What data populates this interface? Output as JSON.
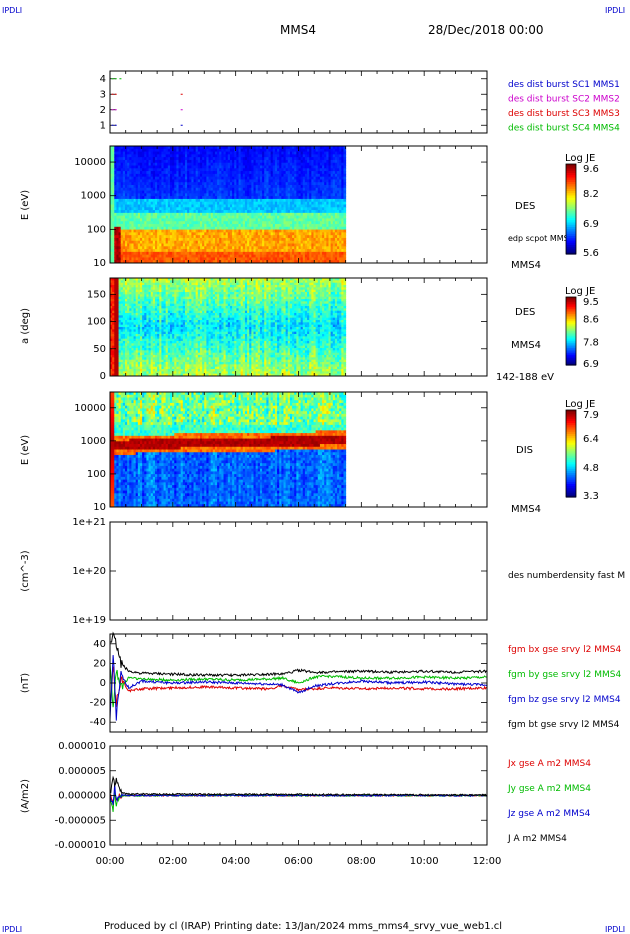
{
  "corner_labels": [
    "IPDLI",
    "IPDLI",
    "IPDLI",
    "IPDLI"
  ],
  "header": {
    "spacecraft": "MMS4",
    "date": "28/Dec/2018 00:00"
  },
  "footer": "Produced by cl (IRAP)   Printing date: 13/Jan/2024   mms_mms4_srvy_vue_web1.cl",
  "colors": {
    "mms1": "#0000cc",
    "mms2": "#cc00cc",
    "mms3": "#dd0000",
    "mms4": "#00bb00",
    "black": "#000000"
  },
  "time_axis": {
    "ticks": [
      "00:00",
      "02:00",
      "04:00",
      "06:00",
      "08:00",
      "10:00",
      "12:00"
    ],
    "range_hours": [
      0,
      12
    ]
  },
  "chart_data": [
    {
      "type": "scatter",
      "panel": "burst",
      "ylim": [
        0.5,
        4.5
      ],
      "yticks": [
        "1",
        "2",
        "3",
        "4"
      ],
      "legend": [
        "des dist burst SC1 MMS1",
        "des dist burst SC2 MMS2",
        "des dist burst SC3 MMS3",
        "des dist burst SC4 MMS4"
      ],
      "series": [
        {
          "name": "des dist burst SC1 MMS1",
          "y": 1,
          "x_hours": [
            0.05,
            0.15,
            2.25
          ]
        },
        {
          "name": "des dist burst SC2 MMS2",
          "y": 2,
          "x_hours": [
            0.05,
            0.15,
            2.25
          ]
        },
        {
          "name": "des dist burst SC3 MMS3",
          "y": 3,
          "x_hours": [
            0.05,
            0.15,
            2.25
          ]
        },
        {
          "name": "des dist burst SC4 MMS4",
          "y": 4,
          "x_hours": [
            0.05,
            0.15,
            0.3
          ]
        }
      ]
    },
    {
      "type": "heatmap",
      "panel": "des_energy",
      "ylabel": "E (eV)",
      "yscale": "log",
      "ylim": [
        10,
        30000
      ],
      "yticks": [
        "10000",
        "1000",
        "100",
        "10"
      ],
      "data_end_hour": 7.5,
      "side_labels": [
        "DES",
        "edp scpot MMS4",
        "MMS4"
      ],
      "colorbar": {
        "title": "Log JE",
        "ticks": [
          "9.6",
          "8.2",
          "6.9",
          "5.6"
        ],
        "range": [
          5.6,
          9.6
        ]
      }
    },
    {
      "type": "heatmap",
      "panel": "des_pitch",
      "ylabel": "a (deg)",
      "ylim": [
        0,
        180
      ],
      "yticks": [
        "150",
        "100",
        "50",
        "0"
      ],
      "data_end_hour": 7.5,
      "side_labels": [
        "DES",
        "MMS4",
        "142-188 eV"
      ],
      "colorbar": {
        "title": "Log JE",
        "ticks": [
          "9.5",
          "8.6",
          "7.8",
          "6.9"
        ],
        "range": [
          6.9,
          9.5
        ]
      }
    },
    {
      "type": "heatmap",
      "panel": "dis_energy",
      "ylabel": "E (eV)",
      "yscale": "log",
      "ylim": [
        10,
        30000
      ],
      "yticks": [
        "10000",
        "1000",
        "100",
        "10"
      ],
      "data_end_hour": 7.5,
      "side_labels": [
        "DIS",
        "MMS4"
      ],
      "colorbar": {
        "title": "Log JE",
        "ticks": [
          "7.9",
          "6.4",
          "4.8",
          "3.3"
        ],
        "range": [
          3.3,
          7.9
        ]
      }
    },
    {
      "type": "line",
      "panel": "density",
      "ylabel": "(cm^-3)",
      "yscale": "log",
      "ylim": [
        1e+19,
        1e+21
      ],
      "yticks": [
        "1e+21",
        "1e+20",
        "1e+19"
      ],
      "legend": [
        "des numberdensity fast M"
      ],
      "series": []
    },
    {
      "type": "line",
      "panel": "fgm",
      "ylabel": "(nT)",
      "ylim": [
        -50,
        50
      ],
      "yticks": [
        "40",
        "20",
        "0",
        "-20",
        "-40"
      ],
      "legend": [
        "fgm bx gse srvy l2 MMS4",
        "fgm by gse srvy l2 MMS4",
        "fgm bz gse srvy l2 MMS4",
        "fgm bt gse srvy l2 MMS4"
      ],
      "series": [
        {
          "name": "fgm bx gse srvy l2 MMS4",
          "x_hours": [
            0,
            0.1,
            0.2,
            0.35,
            0.6,
            1,
            2,
            3,
            4,
            5,
            5.5,
            6,
            6.5,
            7,
            8,
            9,
            10,
            11,
            12
          ],
          "values": [
            -30,
            15,
            -20,
            5,
            -8,
            -6,
            -5,
            -4,
            -5,
            -6,
            -3,
            -7,
            -6,
            -5,
            -6,
            -5,
            -6,
            -6,
            -5
          ]
        },
        {
          "name": "fgm by gse srvy l2 MMS4",
          "x_hours": [
            0,
            0.1,
            0.2,
            0.35,
            0.6,
            1,
            2,
            3,
            4,
            5,
            5.5,
            6,
            6.5,
            7,
            8,
            9,
            10,
            11,
            12
          ],
          "values": [
            20,
            -25,
            15,
            -5,
            6,
            4,
            3,
            4,
            3,
            4,
            5,
            0,
            6,
            7,
            5,
            5,
            6,
            5,
            6
          ]
        },
        {
          "name": "fgm bz gse srvy l2 MMS4",
          "x_hours": [
            0,
            0.1,
            0.2,
            0.35,
            0.6,
            1,
            2,
            3,
            4,
            5,
            5.5,
            6,
            6.5,
            7,
            8,
            9,
            10,
            11,
            12
          ],
          "values": [
            -40,
            30,
            -35,
            8,
            -5,
            2,
            0,
            1,
            0,
            -1,
            -2,
            -10,
            -3,
            -1,
            2,
            0,
            1,
            -1,
            -2
          ]
        },
        {
          "name": "fgm bt gse srvy l2 MMS4",
          "x_hours": [
            0,
            0.1,
            0.2,
            0.35,
            0.6,
            1,
            2,
            3,
            4,
            5,
            5.5,
            6,
            6.5,
            7,
            8,
            9,
            10,
            11,
            12
          ],
          "values": [
            45,
            48,
            40,
            20,
            12,
            10,
            9,
            8,
            8,
            9,
            9,
            13,
            11,
            11,
            12,
            11,
            12,
            11,
            12
          ]
        }
      ]
    },
    {
      "type": "line",
      "panel": "current",
      "ylabel": "(A/m2)",
      "ylim": [
        -1e-05,
        1e-05
      ],
      "yticks": [
        "0.000010",
        "0.000005",
        "0.000000",
        "-0.000005",
        "-0.000010"
      ],
      "legend": [
        "Jx gse A m2 MMS4",
        "Jy gse A m2 MMS4",
        "Jz gse A m2 MMS4",
        "J A m2 MMS4"
      ],
      "series": [
        {
          "name": "Jx gse A m2 MMS4",
          "x_hours": [
            0,
            0.1,
            0.15,
            0.2,
            0.3,
            0.5,
            12
          ],
          "values": [
            0,
            -2e-06,
            1e-06,
            -1e-06,
            0,
            0,
            0
          ]
        },
        {
          "name": "Jy gse A m2 MMS4",
          "x_hours": [
            0,
            0.1,
            0.15,
            0.2,
            0.3,
            0.5,
            12
          ],
          "values": [
            0,
            -3e-06,
            1e-06,
            -2e-06,
            0,
            0,
            0
          ]
        },
        {
          "name": "Jz gse A m2 MMS4",
          "x_hours": [
            0,
            0.1,
            0.15,
            0.2,
            0.3,
            0.5,
            12
          ],
          "values": [
            0,
            -2e-06,
            2e-06,
            -1e-06,
            0,
            0,
            0
          ]
        },
        {
          "name": "J A m2 MMS4",
          "x_hours": [
            0,
            0.1,
            0.15,
            0.2,
            0.3,
            0.5,
            12
          ],
          "values": [
            0,
            4e-06,
            2e-06,
            3e-06,
            1e-06,
            3e-07,
            1e-07
          ]
        }
      ]
    }
  ]
}
